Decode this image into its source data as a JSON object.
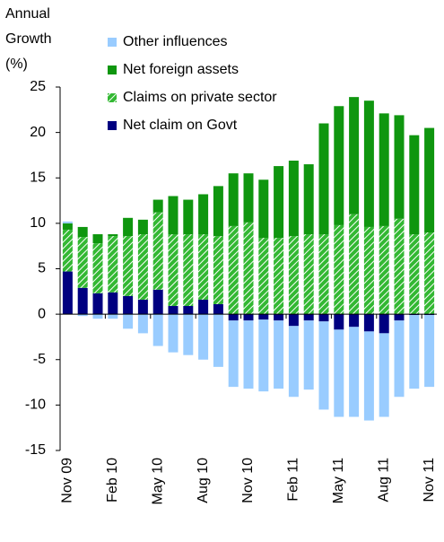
{
  "chart_data": {
    "type": "stacked_bar",
    "y_label": [
      "Annual",
      "Growth",
      "(%)"
    ],
    "categories": [
      "Nov 09",
      null,
      null,
      "Feb 10",
      null,
      null,
      "May 10",
      null,
      null,
      "Aug 10",
      null,
      null,
      "Nov 10",
      null,
      null,
      "Feb 11",
      null,
      null,
      "May 11",
      null,
      null,
      "Aug 11",
      null,
      null,
      "Nov 11"
    ],
    "series": [
      {
        "name": "Net claim on Govt",
        "color": "#000080",
        "values": [
          4.7,
          2.9,
          2.3,
          2.4,
          2.0,
          1.6,
          2.7,
          0.9,
          0.9,
          1.6,
          1.1,
          -0.7,
          -0.7,
          -0.6,
          -0.7,
          -1.3,
          -0.7,
          -0.8,
          -1.7,
          -1.4,
          -1.9,
          -2.1,
          -0.7,
          -0.1,
          -0.1
        ]
      },
      {
        "name": "Claims on private sector",
        "color": "#33b833",
        "pattern": "hatch",
        "values": [
          4.6,
          5.6,
          5.5,
          6.2,
          6.6,
          7.2,
          8.5,
          7.9,
          7.9,
          7.2,
          7.5,
          9.7,
          10.1,
          8.4,
          8.4,
          8.6,
          8.8,
          8.8,
          9.8,
          11.0,
          9.6,
          9.7,
          10.5,
          8.8,
          9.0
        ]
      },
      {
        "name": "Net foreign assets",
        "color": "#0f960f",
        "values": [
          0.7,
          1.1,
          1.0,
          0.2,
          2.0,
          1.6,
          1.4,
          4.2,
          3.8,
          4.4,
          5.5,
          5.8,
          5.4,
          6.4,
          7.9,
          8.3,
          7.7,
          12.2,
          13.1,
          12.9,
          13.9,
          12.4,
          11.4,
          10.9,
          11.5
        ]
      },
      {
        "name": "Other influences",
        "color": "#99ccff",
        "values": [
          0.2,
          -0.2,
          -0.5,
          -0.5,
          -1.6,
          -2.1,
          -3.5,
          -4.2,
          -4.5,
          -5.0,
          -5.8,
          -7.3,
          -7.5,
          -7.9,
          -7.5,
          -7.8,
          -7.6,
          -9.7,
          -9.6,
          -9.9,
          -9.8,
          -9.2,
          -8.4,
          -8.1,
          -7.9
        ]
      }
    ],
    "ylim": [
      -15,
      25
    ],
    "yticks": [
      -15,
      -10,
      -5,
      0,
      5,
      10,
      15,
      20,
      25
    ],
    "legend": "top-left"
  }
}
